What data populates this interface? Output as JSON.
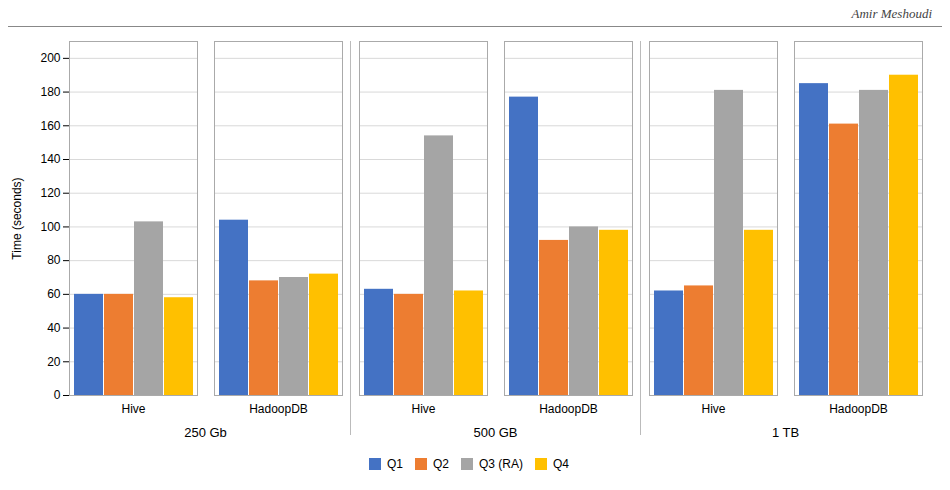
{
  "chart_data": {
    "type": "bar",
    "title": "Amir Meshoudi",
    "categories": [
      "Hive",
      "HadoopDB",
      "Hive",
      "HadoopDB",
      "Hive",
      "HadoopDB"
    ],
    "category_groups": [
      "250 Gb",
      "250 Gb",
      "500 GB",
      "500 GB",
      "1 TB",
      "1 TB"
    ],
    "series": [
      {
        "name": "Q1",
        "color": "#4472C4",
        "values": [
          60,
          104,
          63,
          177,
          62,
          185
        ]
      },
      {
        "name": "Q2",
        "color": "#ED7D31",
        "values": [
          60,
          68,
          60,
          92,
          65,
          161
        ]
      },
      {
        "name": "Q3 (RA)",
        "color": "#A5A5A5",
        "values": [
          103,
          70,
          154,
          100,
          181,
          181
        ]
      },
      {
        "name": "Q4",
        "color": "#FFC000",
        "values": [
          58,
          72,
          62,
          98,
          98,
          190
        ]
      }
    ],
    "ylabel": "Time (seconds)",
    "ylim": [
      0,
      210
    ],
    "yticks": [
      0,
      20,
      40,
      60,
      80,
      100,
      120,
      140,
      160,
      180,
      200
    ],
    "grid": true,
    "legend": "bottom"
  }
}
